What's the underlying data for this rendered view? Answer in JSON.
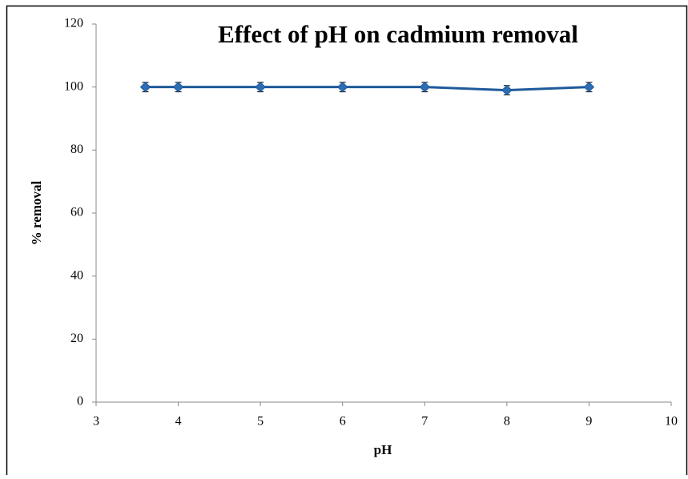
{
  "chart_data": {
    "type": "line",
    "title": "Effect of pH on cadmium removal",
    "x_label": "pH",
    "y_label": "% removal",
    "x": [
      3.6,
      4,
      5,
      6,
      7,
      8,
      9
    ],
    "series": [
      {
        "color": "#1f5a9a",
        "marker_color": "#2e6db4",
        "values": [
          100,
          100,
          100,
          100,
          100,
          99,
          100
        ],
        "errors": [
          1.5,
          1.5,
          1.5,
          1.5,
          1.5,
          1.5,
          1.5
        ]
      }
    ],
    "xlim": [
      3,
      10
    ],
    "xticks": [
      3,
      4,
      5,
      6,
      7,
      8,
      9,
      10
    ],
    "ylim": [
      0,
      120
    ],
    "yticks": [
      0,
      20,
      40,
      60,
      80,
      100,
      120
    ],
    "grid": false
  }
}
